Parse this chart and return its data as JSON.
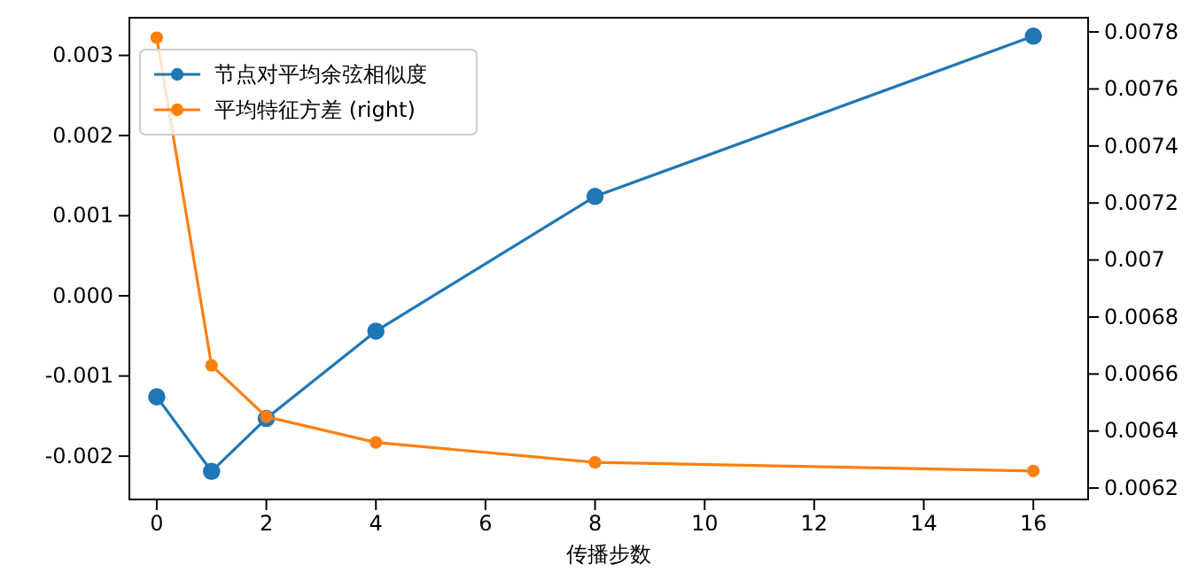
{
  "chart_data": {
    "type": "line",
    "xlabel": "传播步数",
    "x": [
      0,
      1,
      2,
      4,
      8,
      16
    ],
    "series": [
      {
        "name": "节点对平均余弦相似度",
        "color": "#1f77b4",
        "values": [
          -0.00126,
          -0.00219,
          -0.00153,
          -0.00044,
          0.00124,
          0.00324
        ]
      },
      {
        "name": "平均特征方差 (right)",
        "color": "#ff7f0e",
        "axis": "y2",
        "values": [
          0.00778,
          0.00663,
          0.00645,
          0.00636,
          0.00629,
          0.00626
        ]
      }
    ],
    "xlim": [
      -0.5,
      17
    ],
    "xticks": [
      0,
      2,
      4,
      6,
      8,
      10,
      12,
      14,
      16
    ],
    "ylim": [
      -0.00254,
      0.00347
    ],
    "yticks": [
      {
        "value": -0.002,
        "label": "-0.002"
      },
      {
        "value": -0.001,
        "label": "-0.001"
      },
      {
        "value": 0,
        "label": "0.000"
      },
      {
        "value": 0.001,
        "label": "0.001"
      },
      {
        "value": 0.002,
        "label": "0.002"
      },
      {
        "value": 0.003,
        "label": "0.003"
      }
    ],
    "y2lim": [
      0.00616,
      0.00785
    ],
    "y2ticks": [
      0.0062,
      0.0064,
      0.0066,
      0.0068,
      0.007,
      0.0072,
      0.0074,
      0.0076,
      0.0078
    ],
    "legend": "top left",
    "marker": "circle",
    "grid": false
  }
}
